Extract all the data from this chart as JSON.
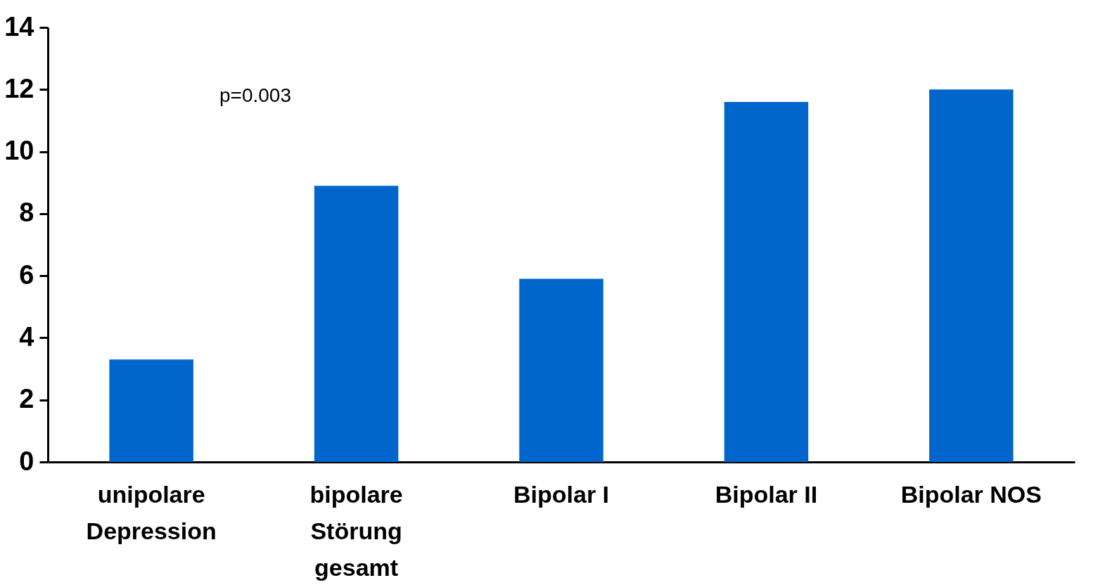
{
  "chart_data": {
    "type": "bar",
    "categories": [
      "unipolare\nDepression",
      "bipolare\nStörung\ngesamt",
      "Bipolar I",
      "Bipolar II",
      "Bipolar NOS"
    ],
    "values": [
      3.3,
      8.9,
      5.9,
      11.6,
      12.0
    ],
    "color": "#0066cc",
    "ylim": [
      0,
      14
    ],
    "yticks": [
      0,
      2,
      4,
      6,
      8,
      10,
      12,
      14
    ],
    "grid": false,
    "annotations": [
      "p=0.003"
    ]
  }
}
